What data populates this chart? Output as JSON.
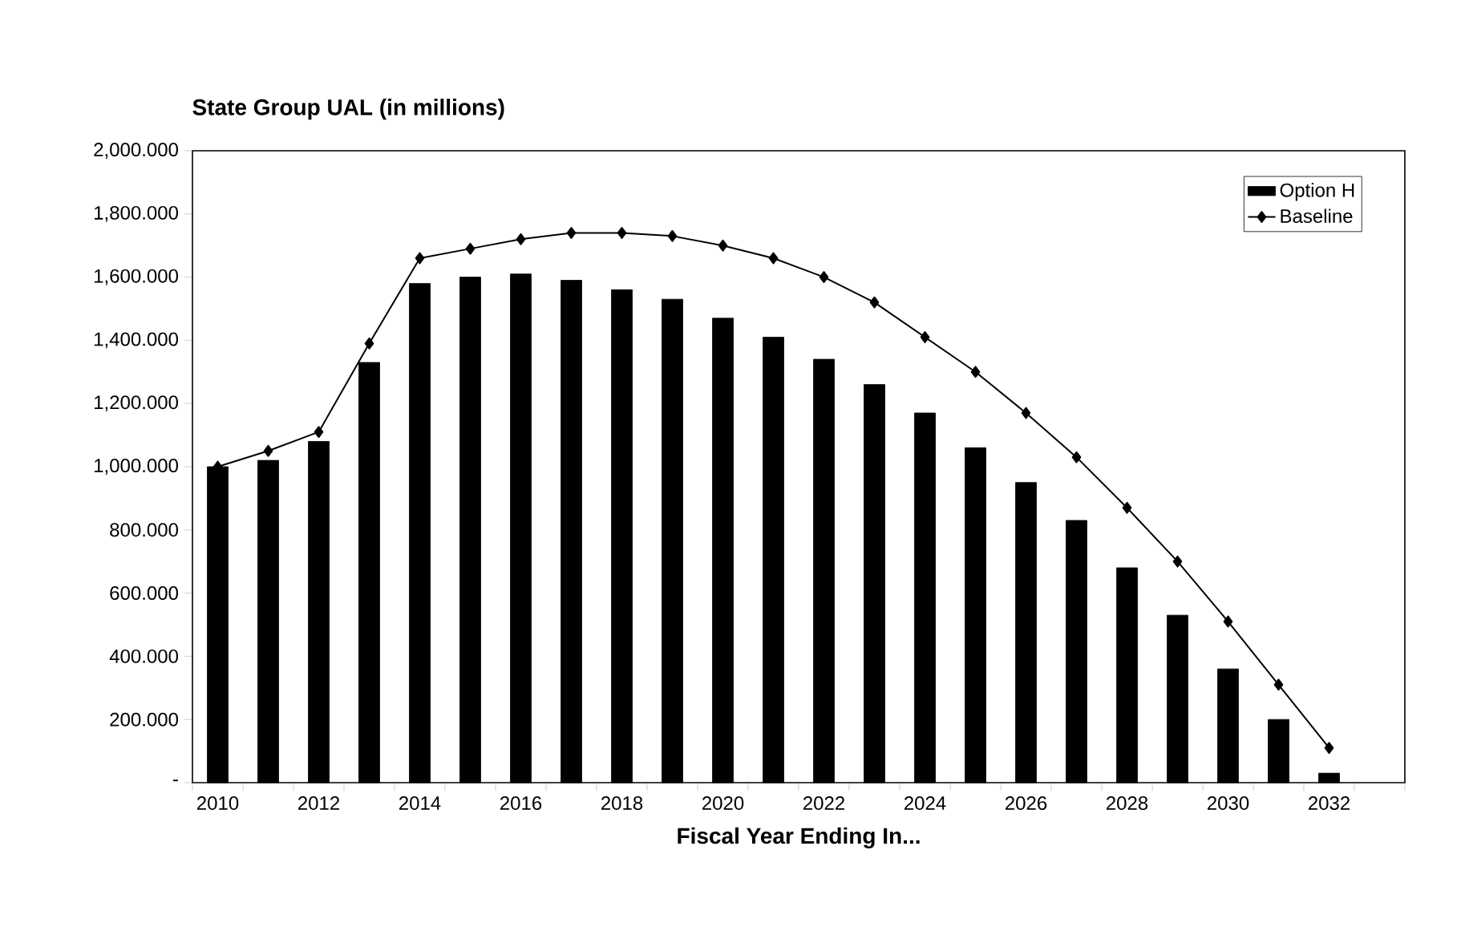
{
  "chart_data": {
    "type": "bar",
    "title": "State Group UAL (in millions)",
    "xlabel": "Fiscal Year Ending In...",
    "categories": [
      "2010",
      null,
      "2012",
      null,
      "2014",
      null,
      "2016",
      null,
      "2018",
      null,
      "2020",
      null,
      "2022",
      null,
      "2024",
      null,
      "2026",
      null,
      "2028",
      null,
      "2030",
      null,
      "2032",
      null
    ],
    "series": [
      {
        "name": "Option H",
        "color": "#000000",
        "values": [
          1000,
          1020,
          1080,
          1330,
          1580,
          1600,
          1610,
          1590,
          1560,
          1530,
          1470,
          1410,
          1340,
          1260,
          1170,
          1060,
          950,
          830,
          680,
          530,
          360,
          200,
          30,
          null
        ]
      },
      {
        "name": "Baseline",
        "type": "line",
        "color": "#000000",
        "values": [
          1000,
          1050,
          1110,
          1390,
          1660,
          1690,
          1720,
          1740,
          1740,
          1730,
          1700,
          1660,
          1600,
          1520,
          1410,
          1300,
          1170,
          1030,
          870,
          700,
          510,
          310,
          110,
          null
        ]
      }
    ],
    "marker": "diamond",
    "legend": "top right",
    "ylim": [
      0,
      2000
    ],
    "yticks": [
      {
        "value": 0,
        "label": "-"
      },
      {
        "value": 200,
        "label": "200.000"
      },
      {
        "value": 400,
        "label": "400.000"
      },
      {
        "value": 600,
        "label": "600.000"
      },
      {
        "value": 800,
        "label": "800.000"
      },
      {
        "value": 1000,
        "label": "1,000.000"
      },
      {
        "value": 1200,
        "label": "1,200.000"
      },
      {
        "value": 1400,
        "label": "1,400.000"
      },
      {
        "value": 1600,
        "label": "1,600.000"
      },
      {
        "value": 1800,
        "label": "1,800.000"
      },
      {
        "value": 2000,
        "label": "2,000.000"
      }
    ]
  }
}
